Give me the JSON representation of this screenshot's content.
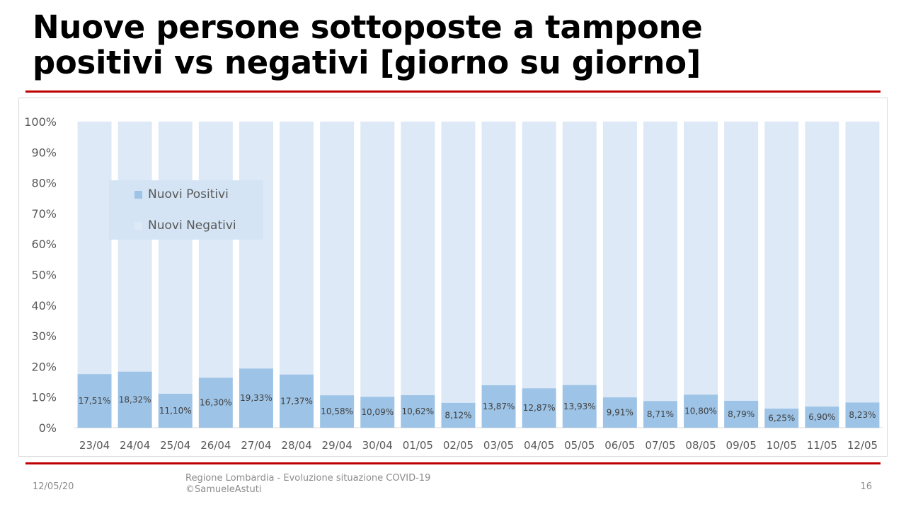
{
  "slide": {
    "title_line1": "Nuove persone sottoposte a tampone",
    "title_line2": "positivi vs negativi [giorno su giorno]",
    "footer_date": "12/05/20",
    "footer_source": "Regione Lombardia - Evoluzione situazione COVID-19",
    "footer_author": "©SamueleAstuti",
    "page_number": "16"
  },
  "colors": {
    "positive": "#9dc3e6",
    "negative": "#dde9f6",
    "legend_bg": "#d4e4f4",
    "accent_rule": "#c00000",
    "axis_text": "#595959"
  },
  "chart_data": {
    "type": "bar",
    "stacked": true,
    "normalized": true,
    "title": "",
    "xlabel": "",
    "ylabel": "",
    "ylim": [
      0,
      100
    ],
    "y_ticks": [
      "0%",
      "10%",
      "20%",
      "30%",
      "40%",
      "50%",
      "60%",
      "70%",
      "80%",
      "90%",
      "100%"
    ],
    "grid": true,
    "legend_position": "top-left",
    "categories": [
      "23/04",
      "24/04",
      "25/04",
      "26/04",
      "27/04",
      "28/04",
      "29/04",
      "30/04",
      "01/05",
      "02/05",
      "03/05",
      "04/05",
      "05/05",
      "06/05",
      "07/05",
      "08/05",
      "09/05",
      "10/05",
      "11/05",
      "12/05"
    ],
    "series": [
      {
        "name": "Nuovi Positivi",
        "values": [
          17.51,
          18.32,
          11.1,
          16.3,
          19.33,
          17.37,
          10.58,
          10.09,
          10.62,
          8.12,
          13.87,
          12.87,
          13.93,
          9.91,
          8.71,
          10.8,
          8.79,
          6.25,
          6.9,
          8.23
        ],
        "labels": [
          "17,51%",
          "18,32%",
          "11,10%",
          "16,30%",
          "19,33%",
          "17,37%",
          "10,58%",
          "10,09%",
          "10,62%",
          "8,12%",
          "13,87%",
          "12,87%",
          "13,93%",
          "9,91%",
          "8,71%",
          "10,80%",
          "8,79%",
          "6,25%",
          "6,90%",
          "8,23%"
        ]
      },
      {
        "name": "Nuovi Negativi",
        "values": [
          82.49,
          81.68,
          88.9,
          83.7,
          80.67,
          82.63,
          89.42,
          89.91,
          89.38,
          91.88,
          86.13,
          87.13,
          86.07,
          90.09,
          91.29,
          89.2,
          91.21,
          93.75,
          93.1,
          91.77
        ]
      }
    ]
  }
}
